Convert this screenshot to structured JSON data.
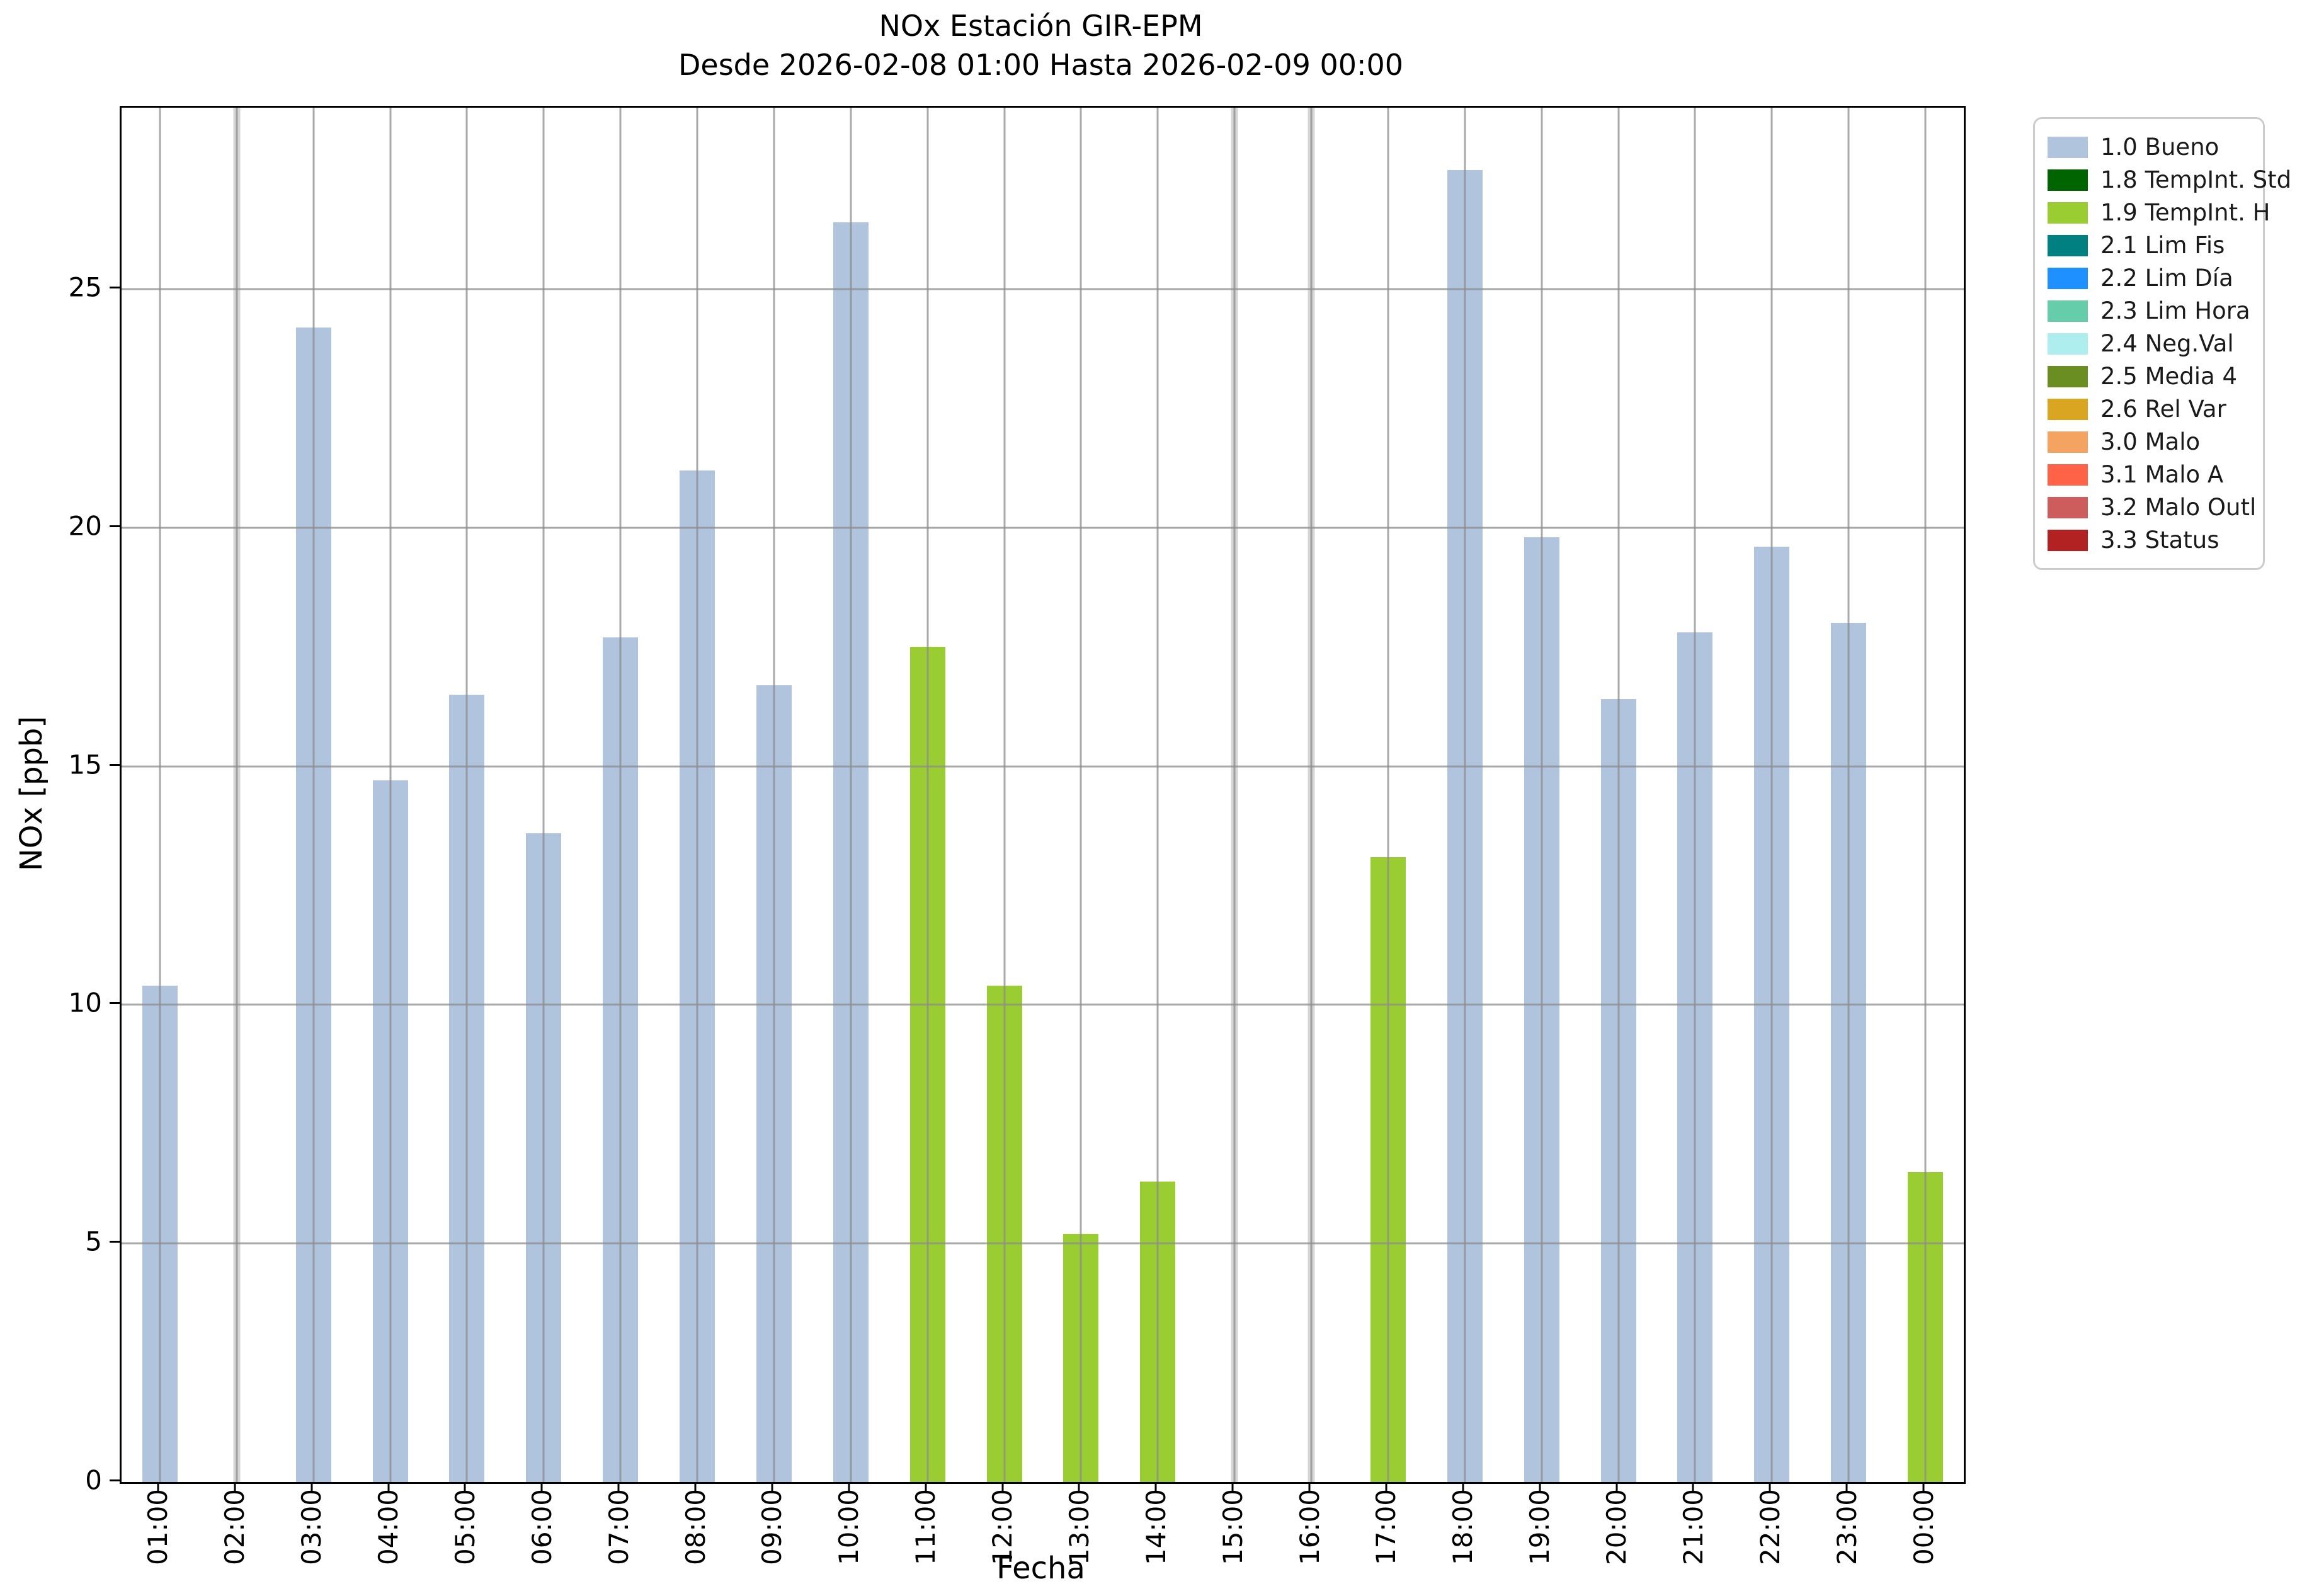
{
  "title": {
    "line1": "NOx Estación GIR-EPM",
    "line2": "Desde 2026-02-08 01:00 Hasta 2026-02-09 00:00"
  },
  "chart_data": {
    "type": "bar",
    "title": "NOx Estación GIR-EPM",
    "subtitle": "Desde 2026-02-08 01:00 Hasta 2026-02-09 00:00",
    "xlabel": "Fecha",
    "ylabel": "NOx [ppb]",
    "ylim": [
      0,
      28.8
    ],
    "yticks": [
      0,
      5,
      10,
      15,
      20,
      25
    ],
    "grid": true,
    "legend_position": "outside upper right",
    "categories": [
      "01:00",
      "02:00",
      "03:00",
      "04:00",
      "05:00",
      "06:00",
      "07:00",
      "08:00",
      "09:00",
      "10:00",
      "11:00",
      "12:00",
      "13:00",
      "14:00",
      "15:00",
      "16:00",
      "17:00",
      "18:00",
      "19:00",
      "20:00",
      "21:00",
      "22:00",
      "23:00",
      "00:00"
    ],
    "bars": [
      {
        "label": "01:00",
        "value": 10.4,
        "status": "1.0 Bueno"
      },
      {
        "label": "02:00",
        "value": null,
        "status": "missing"
      },
      {
        "label": "03:00",
        "value": 24.2,
        "status": "1.0 Bueno"
      },
      {
        "label": "04:00",
        "value": 14.7,
        "status": "1.0 Bueno"
      },
      {
        "label": "05:00",
        "value": 16.5,
        "status": "1.0 Bueno"
      },
      {
        "label": "06:00",
        "value": 13.6,
        "status": "1.0 Bueno"
      },
      {
        "label": "07:00",
        "value": 17.7,
        "status": "1.0 Bueno"
      },
      {
        "label": "08:00",
        "value": 21.2,
        "status": "1.0 Bueno"
      },
      {
        "label": "09:00",
        "value": 16.7,
        "status": "1.0 Bueno"
      },
      {
        "label": "10:00",
        "value": 26.4,
        "status": "1.0 Bueno"
      },
      {
        "label": "11:00",
        "value": 17.5,
        "status": "1.9 TempInt. H"
      },
      {
        "label": "12:00",
        "value": 10.4,
        "status": "1.9 TempInt. H"
      },
      {
        "label": "13:00",
        "value": 5.2,
        "status": "1.9 TempInt. H"
      },
      {
        "label": "14:00",
        "value": 6.3,
        "status": "1.9 TempInt. H"
      },
      {
        "label": "15:00",
        "value": null,
        "status": "missing"
      },
      {
        "label": "16:00",
        "value": null,
        "status": "missing"
      },
      {
        "label": "17:00",
        "value": 13.1,
        "status": "1.9 TempInt. H"
      },
      {
        "label": "18:00",
        "value": 27.5,
        "status": "1.0 Bueno"
      },
      {
        "label": "19:00",
        "value": 19.8,
        "status": "1.0 Bueno"
      },
      {
        "label": "20:00",
        "value": 16.4,
        "status": "1.0 Bueno"
      },
      {
        "label": "21:00",
        "value": 17.8,
        "status": "1.0 Bueno"
      },
      {
        "label": "22:00",
        "value": 19.6,
        "status": "1.0 Bueno"
      },
      {
        "label": "23:00",
        "value": 18.0,
        "status": "1.0 Bueno"
      },
      {
        "label": "00:00",
        "value": 6.5,
        "status": "1.9 TempInt. H"
      }
    ]
  },
  "legend": {
    "items": [
      {
        "label": "1.0 Bueno",
        "color": "#b0c4de"
      },
      {
        "label": "1.8 TempInt. Std",
        "color": "#006400"
      },
      {
        "label": "1.9 TempInt. H",
        "color": "#9acd32"
      },
      {
        "label": "2.1 Lim Fis",
        "color": "#008080"
      },
      {
        "label": "2.2 Lim Día",
        "color": "#1e90ff"
      },
      {
        "label": "2.3 Lim Hora",
        "color": "#66cdaa"
      },
      {
        "label": "2.4 Neg.Val",
        "color": "#afeeee"
      },
      {
        "label": "2.5 Media 4",
        "color": "#6b8e23"
      },
      {
        "label": "2.6 Rel Var",
        "color": "#daa520"
      },
      {
        "label": "3.0 Malo",
        "color": "#f4a460"
      },
      {
        "label": "3.1 Malo A",
        "color": "#ff6347"
      },
      {
        "label": "3.2 Malo Outl",
        "color": "#cd5c5c"
      },
      {
        "label": "3.3 Status",
        "color": "#b22222"
      }
    ]
  },
  "colors": {
    "bar_default": "#b0c4de",
    "bar_tempint_h": "#9acd32",
    "missing_band": "#d6d6d6",
    "gridline": "#8c8c8c",
    "axis": "#000000",
    "legend_border": "#cccccc"
  }
}
